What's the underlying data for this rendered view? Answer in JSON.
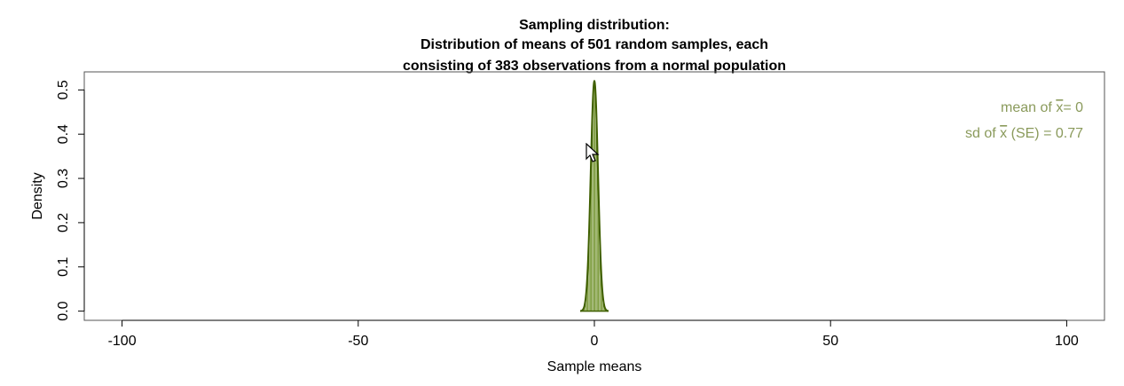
{
  "chart_data": {
    "type": "histogram",
    "title_lines": [
      "Sampling distribution:",
      "Distribution of means of 501 random samples, each",
      "consisting of 383 observations from a normal population"
    ],
    "xlabel": "Sample means",
    "ylabel": "Density",
    "xlim": [
      -108,
      108
    ],
    "ylim": [
      -0.0208,
      0.5408
    ],
    "xticks": [
      {
        "value": -100,
        "label": "-100"
      },
      {
        "value": -50,
        "label": "-50"
      },
      {
        "value": 0,
        "label": "0"
      },
      {
        "value": 50,
        "label": "50"
      },
      {
        "value": 100,
        "label": "100"
      }
    ],
    "yticks": [
      {
        "value": 0.0,
        "label": "0.0"
      },
      {
        "value": 0.1,
        "label": "0.1"
      },
      {
        "value": 0.2,
        "label": "0.2"
      },
      {
        "value": 0.3,
        "label": "0.3"
      },
      {
        "value": 0.4,
        "label": "0.4"
      },
      {
        "value": 0.5,
        "label": "0.5"
      }
    ],
    "distribution": {
      "mean": 0,
      "sd": 0.77,
      "x_range": [
        -3,
        3
      ],
      "peak_density": 0.52
    },
    "stats": [
      {
        "prefix": "mean of ",
        "symbol": "x",
        "suffix": "= 0"
      },
      {
        "prefix": "sd of ",
        "symbol": "x",
        "suffix": " (SE) = 0.77"
      }
    ],
    "colors": {
      "fill": "#6b8e23",
      "line": "#3f5f00",
      "text": "#8a9a5b",
      "axis": "#000000"
    }
  }
}
